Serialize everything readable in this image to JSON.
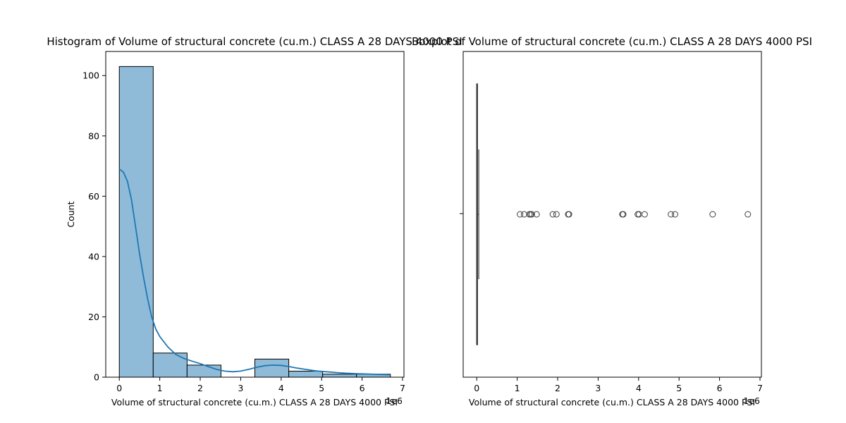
{
  "figure": {
    "background": "#ffffff"
  },
  "chart_data": [
    {
      "type": "bar",
      "subtype": "histogram",
      "title": "Histogram of Volume of structural concrete (cu.m.)  CLASS A 28 DAYS 4000 PSI",
      "xlabel": "Volume of structural concrete (cu.m.)  CLASS A 28 DAYS 4000 PSI",
      "ylabel": "Count",
      "x_offset_text": "1e6",
      "xlim": [
        -0.335,
        7.035
      ],
      "ylim": [
        0,
        108
      ],
      "xticks": [
        0,
        1,
        2,
        3,
        4,
        5,
        6,
        7
      ],
      "yticks": [
        0,
        20,
        40,
        60,
        80,
        100
      ],
      "bin_edges": [
        0,
        0.838,
        1.675,
        2.513,
        3.35,
        4.188,
        5.025,
        5.863,
        6.7
      ],
      "counts": [
        103,
        8,
        4,
        0,
        6,
        2,
        1,
        1
      ],
      "bar_color": "#8fbbd9",
      "edge_color": "#000000",
      "kde": {
        "color": "#1f77b4",
        "x": [
          0,
          0.1,
          0.2,
          0.3,
          0.4,
          0.5,
          0.6,
          0.7,
          0.8,
          0.9,
          1.0,
          1.2,
          1.4,
          1.6,
          1.8,
          2.0,
          2.2,
          2.4,
          2.6,
          2.8,
          3.0,
          3.2,
          3.4,
          3.6,
          3.8,
          4.0,
          4.2,
          4.4,
          4.6,
          4.8,
          5.0,
          5.2,
          5.4,
          5.6,
          5.8,
          6.0,
          6.2,
          6.4,
          6.7
        ],
        "y": [
          69,
          68,
          65,
          59,
          50,
          41,
          33,
          26,
          20,
          16,
          13.5,
          10,
          7.5,
          6.2,
          5.3,
          4.5,
          3.5,
          2.6,
          2.0,
          1.8,
          2.0,
          2.6,
          3.3,
          3.8,
          4.0,
          3.9,
          3.5,
          3.0,
          2.6,
          2.2,
          1.9,
          1.7,
          1.5,
          1.3,
          1.2,
          1.1,
          1.0,
          0.9,
          0.8
        ]
      }
    },
    {
      "type": "scatter",
      "subtype": "boxplot",
      "title": "Boxplot of Volume of structural concrete (cu.m.)  CLASS A 28 DAYS 4000 PSI",
      "xlabel": "Volume of structural concrete (cu.m.)  CLASS A 28 DAYS 4000 PSI",
      "x_offset_text": "1e6",
      "xlim": [
        -0.335,
        7.035
      ],
      "xticks": [
        0,
        1,
        2,
        3,
        4,
        5,
        6,
        7
      ],
      "box": {
        "min": 0,
        "q1": 0,
        "median": 0,
        "q3": 0.02,
        "max": 0.05
      },
      "outliers": [
        1.07,
        1.17,
        1.3,
        1.33,
        1.36,
        1.48,
        1.88,
        1.97,
        2.26,
        2.28,
        3.6,
        3.62,
        3.98,
        4.01,
        4.15,
        4.8,
        4.9,
        5.83,
        6.7
      ],
      "color": "#3d3d3d"
    }
  ]
}
